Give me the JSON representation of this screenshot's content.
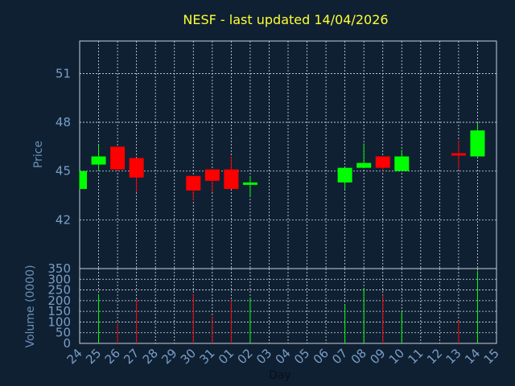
{
  "colors": {
    "background": "#0f2033",
    "grid": "#d8dee6",
    "frame": "#c8d0da",
    "title": "#ffff33",
    "tick_label": "#7a9ec6",
    "axis_label": "#6a8fb8",
    "up": "#00ff00",
    "down": "#ff0000"
  },
  "chart_data": {
    "type": "candlestick",
    "title": "NESF - last updated 14/04/2026",
    "price_ylabel": "Price",
    "volume_ylabel": "Volume (0000)",
    "xlabel": "Day",
    "categories": [
      "24",
      "25",
      "26",
      "27",
      "28",
      "29",
      "30",
      "31",
      "01",
      "02",
      "03",
      "04",
      "05",
      "06",
      "07",
      "08",
      "09",
      "10",
      "11",
      "12",
      "13",
      "14",
      "15"
    ],
    "price_ylim": [
      39.0,
      53.0
    ],
    "price_yticks": [
      "42",
      "45",
      "48",
      "51"
    ],
    "volume_ylim": [
      0,
      350
    ],
    "volume_yticks": [
      "0",
      "50",
      "100",
      "150",
      "200",
      "250",
      "300",
      "350"
    ],
    "grid": true,
    "candles": [
      {
        "day": "24",
        "open": 43.9,
        "high": 45.0,
        "low": 43.9,
        "close": 45.0
      },
      {
        "day": "25",
        "open": 45.4,
        "high": 46.6,
        "low": 45.0,
        "close": 45.9
      },
      {
        "day": "26",
        "open": 46.5,
        "high": 46.5,
        "low": 45.0,
        "close": 45.1
      },
      {
        "day": "27",
        "open": 45.8,
        "high": 45.8,
        "low": 43.7,
        "close": 44.6
      },
      {
        "day": "30",
        "open": 44.7,
        "high": 44.7,
        "low": 43.2,
        "close": 43.8
      },
      {
        "day": "31",
        "open": 45.1,
        "high": 45.1,
        "low": 43.7,
        "close": 44.4
      },
      {
        "day": "01",
        "open": 45.1,
        "high": 45.9,
        "low": 43.9,
        "close": 43.9
      },
      {
        "day": "02",
        "open": 44.2,
        "high": 44.7,
        "low": 43.5,
        "close": 44.3
      },
      {
        "day": "07",
        "open": 44.3,
        "high": 45.2,
        "low": 43.9,
        "close": 45.2
      },
      {
        "day": "08",
        "open": 45.2,
        "high": 46.7,
        "low": 45.2,
        "close": 45.5
      },
      {
        "day": "09",
        "open": 45.9,
        "high": 45.9,
        "low": 45.0,
        "close": 45.2
      },
      {
        "day": "10",
        "open": 45.0,
        "high": 46.3,
        "low": 45.0,
        "close": 45.9
      },
      {
        "day": "13",
        "open": 46.1,
        "high": 46.9,
        "low": 45.1,
        "close": 46.0
      },
      {
        "day": "14",
        "open": 45.9,
        "high": 48.0,
        "low": 45.9,
        "close": 47.5
      }
    ],
    "volume": [
      {
        "day": "24",
        "value": 0,
        "dir": "up"
      },
      {
        "day": "25",
        "value": 230,
        "dir": "up"
      },
      {
        "day": "26",
        "value": 95,
        "dir": "down"
      },
      {
        "day": "27",
        "value": 205,
        "dir": "down"
      },
      {
        "day": "30",
        "value": 230,
        "dir": "down"
      },
      {
        "day": "31",
        "value": 125,
        "dir": "down"
      },
      {
        "day": "01",
        "value": 200,
        "dir": "down"
      },
      {
        "day": "02",
        "value": 215,
        "dir": "up"
      },
      {
        "day": "07",
        "value": 180,
        "dir": "up"
      },
      {
        "day": "08",
        "value": 260,
        "dir": "up"
      },
      {
        "day": "09",
        "value": 225,
        "dir": "down"
      },
      {
        "day": "10",
        "value": 150,
        "dir": "up"
      },
      {
        "day": "13",
        "value": 105,
        "dir": "down"
      },
      {
        "day": "14",
        "value": 340,
        "dir": "up"
      }
    ]
  }
}
